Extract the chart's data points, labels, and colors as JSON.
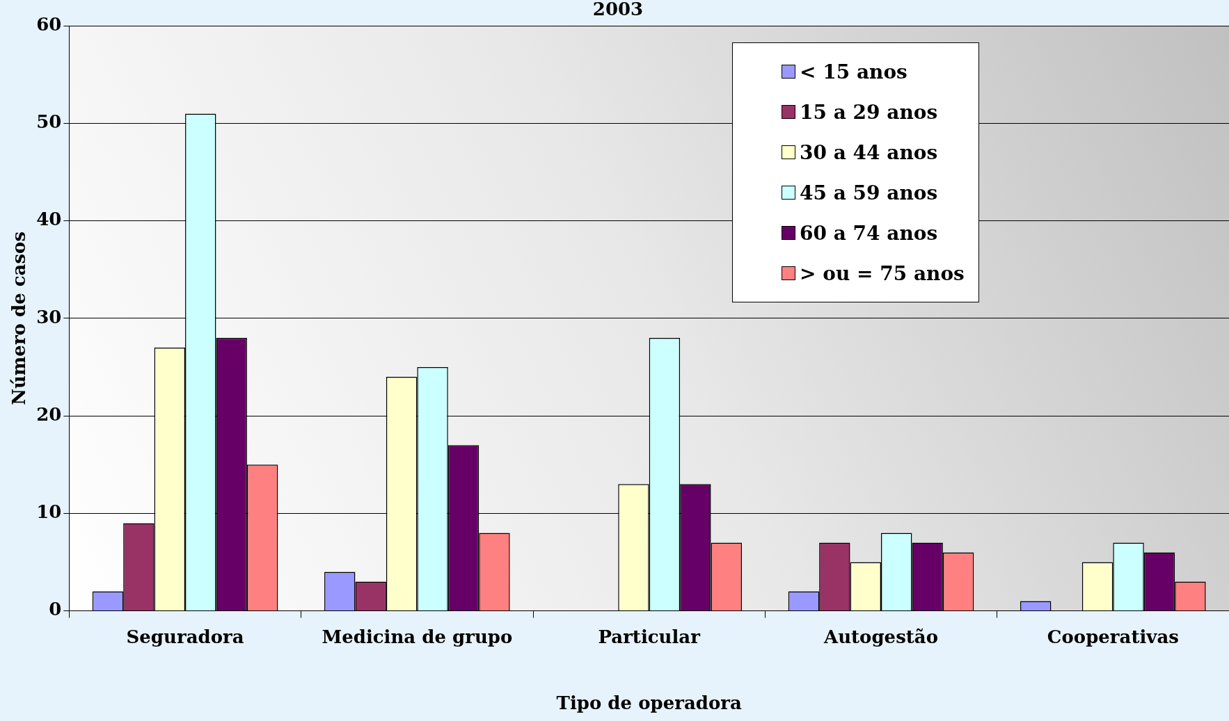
{
  "chart_data": {
    "type": "bar",
    "title": "2003",
    "xlabel": "Tipo de operadora",
    "ylabel": "Número de casos",
    "categories": [
      "Seguradora",
      "Medicina de grupo",
      "Particular",
      "Autogestão",
      "Cooperativas"
    ],
    "series": [
      {
        "name": "< 15 anos",
        "color": "#9999ff",
        "values": [
          2,
          4,
          0,
          2,
          1
        ]
      },
      {
        "name": "15 a 29 anos",
        "color": "#993366",
        "values": [
          9,
          3,
          0,
          7,
          0
        ]
      },
      {
        "name": "30 a 44 anos",
        "color": "#ffffcc",
        "values": [
          27,
          24,
          13,
          5,
          5
        ]
      },
      {
        "name": "45 a 59 anos",
        "color": "#ccffff",
        "values": [
          51,
          25,
          28,
          8,
          7
        ]
      },
      {
        "name": "60 a 74 anos",
        "color": "#660066",
        "values": [
          28,
          17,
          13,
          7,
          6
        ]
      },
      {
        "name": "> ou = 75 anos",
        "color": "#ff8080",
        "values": [
          15,
          8,
          7,
          6,
          3
        ]
      }
    ],
    "ylim": [
      0,
      60
    ],
    "yticks": [
      0,
      10,
      20,
      30,
      40,
      50,
      60
    ],
    "grid": "y",
    "legend": "top right"
  }
}
